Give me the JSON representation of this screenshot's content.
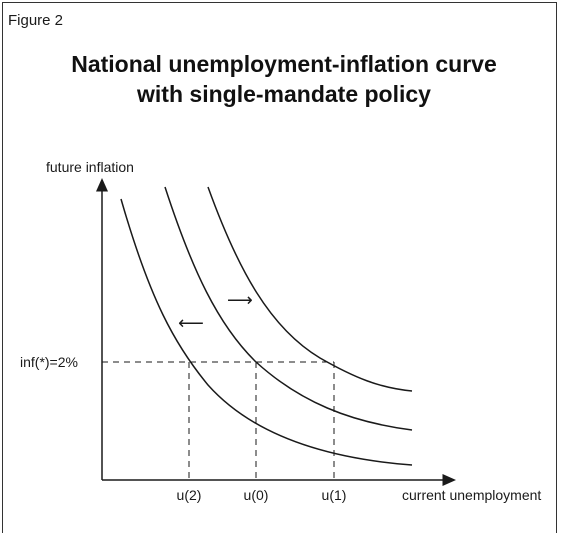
{
  "figure_label": "Figure 2",
  "title": {
    "line1": "National unemployment-inflation curve",
    "line2": "with single-mandate policy"
  },
  "axes": {
    "y_label": "future inflation",
    "x_label": "current unemployment"
  },
  "reference": {
    "y_label": "inf(*)=2%"
  },
  "x_markers": [
    "u(2)",
    "u(0)",
    "u(1)"
  ],
  "arrows": {
    "left": "⟵",
    "right": "⟶"
  }
}
